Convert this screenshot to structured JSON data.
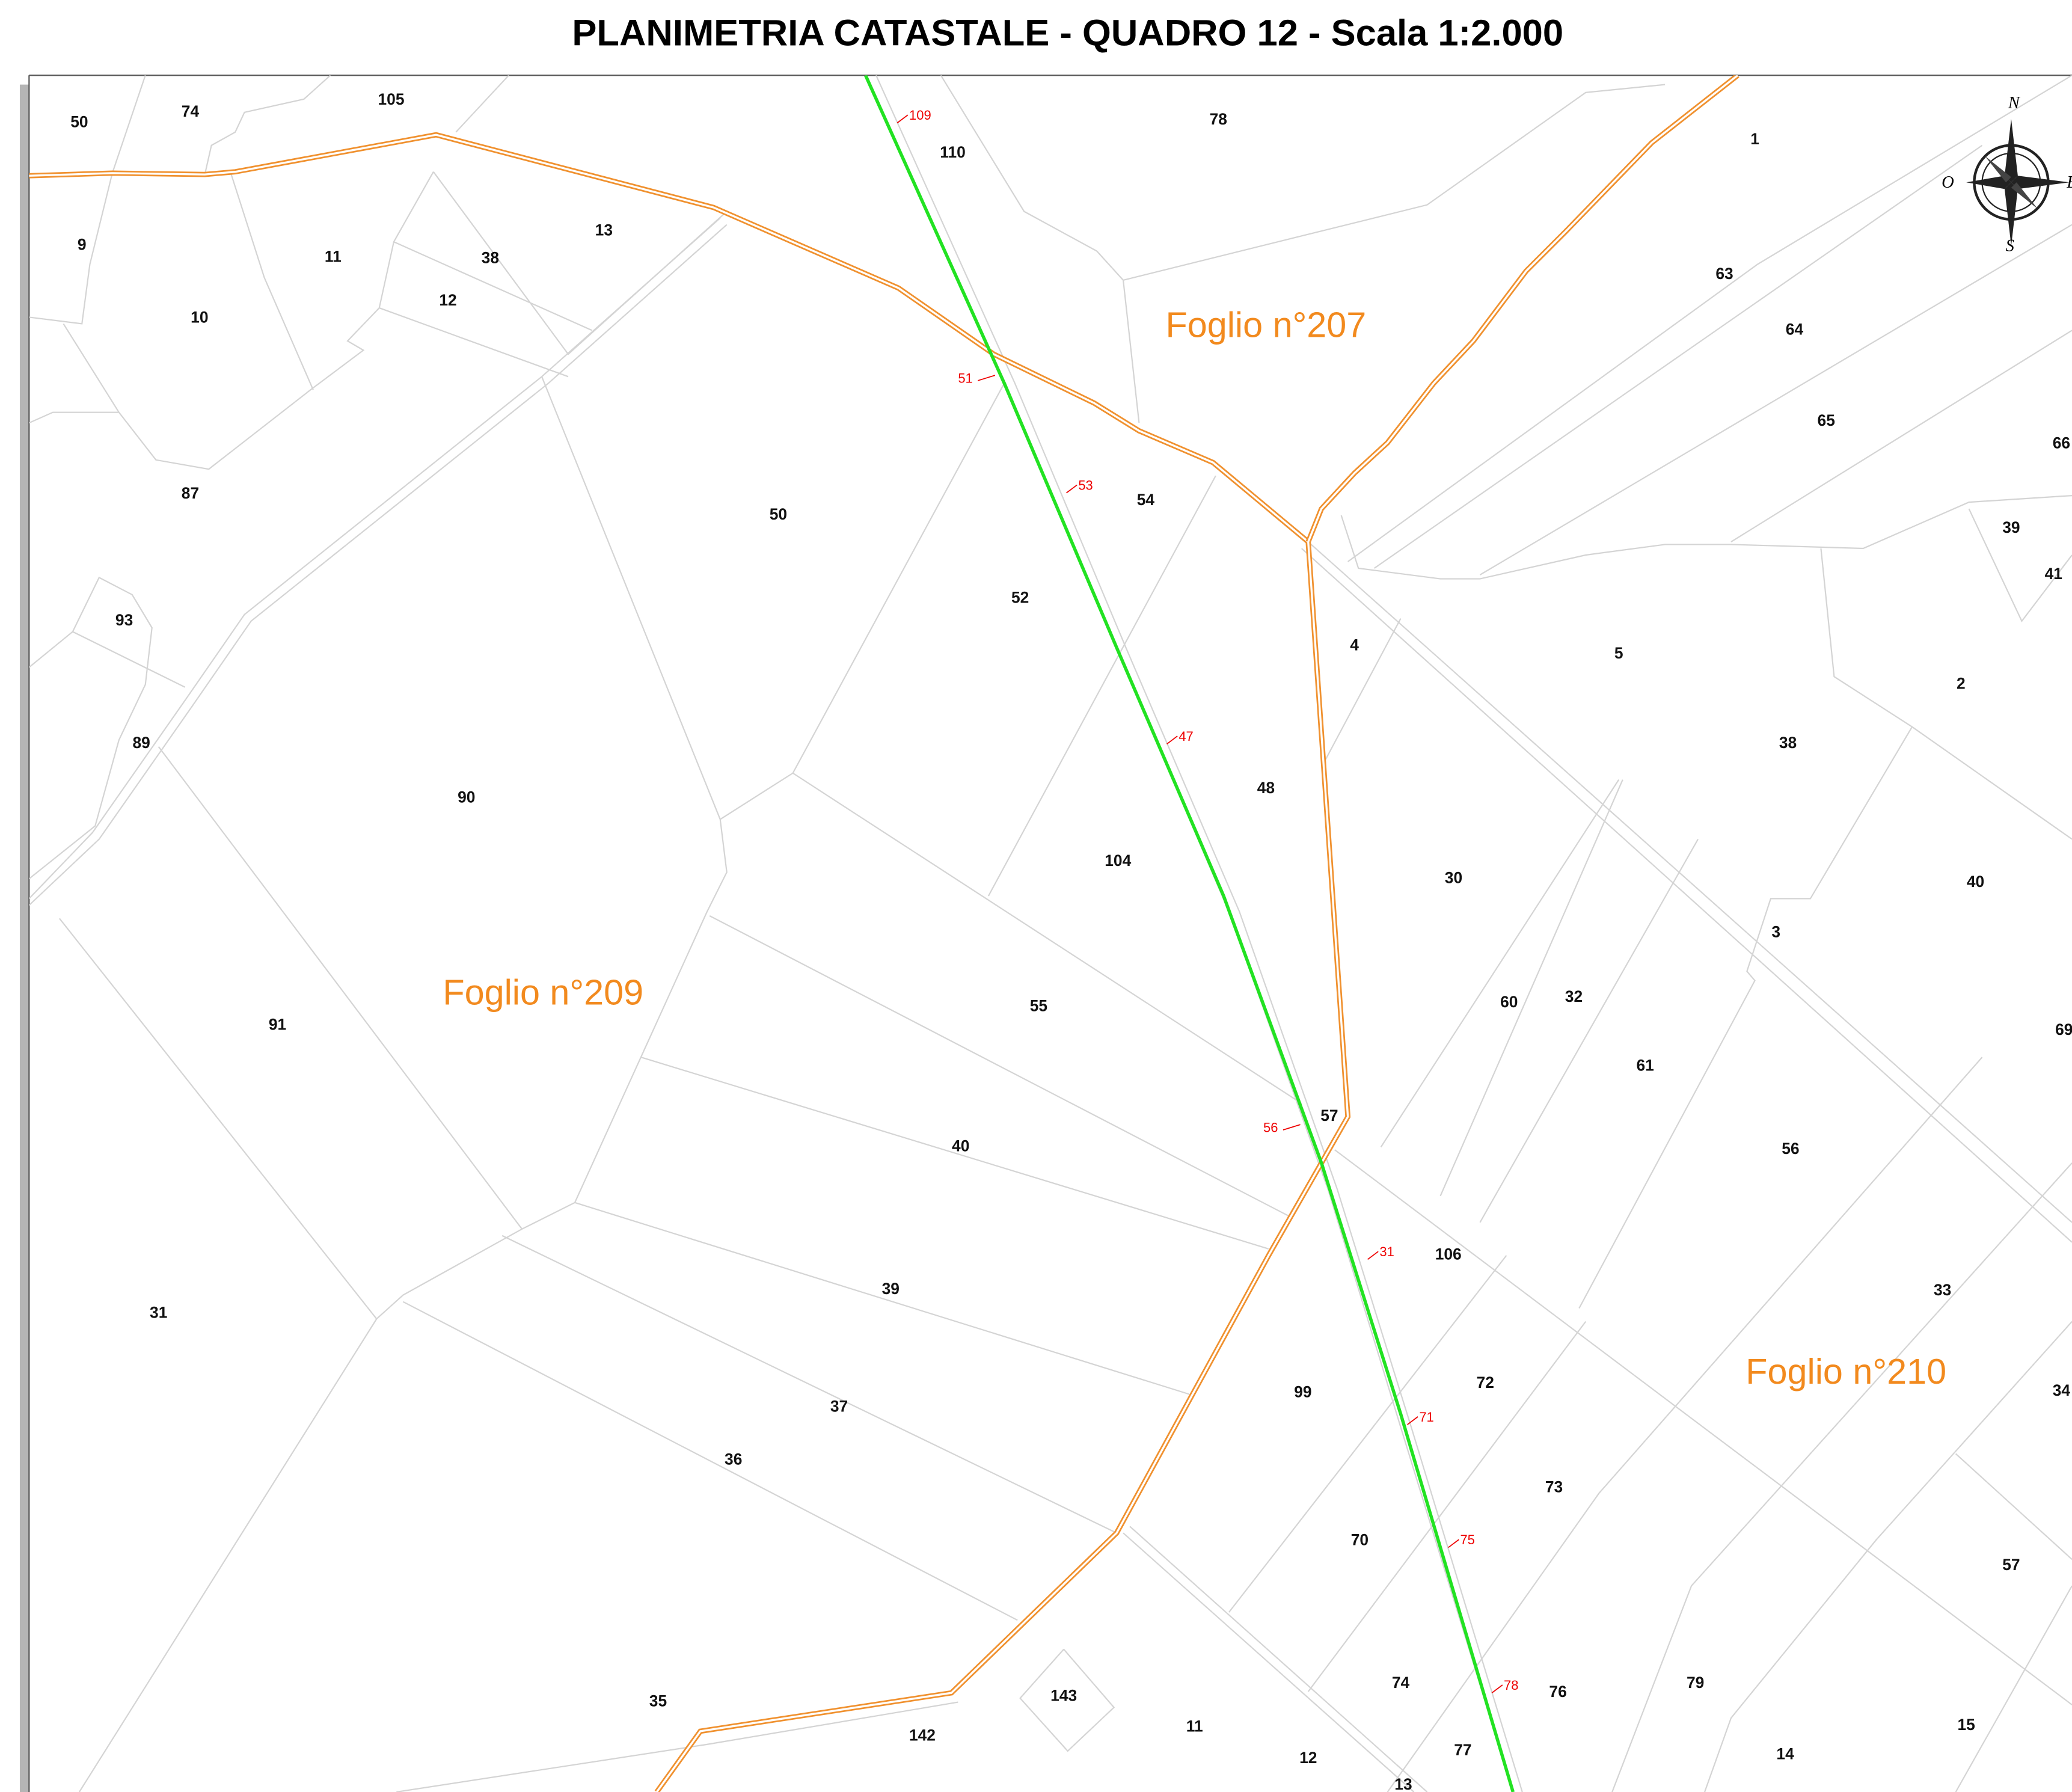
{
  "title": "PLANIMETRIA CATASTALE - QUADRO 12 - Scala 1:2.000",
  "sheets": [
    "Foglio n°207",
    "Foglio n°209",
    "Foglio n°210"
  ],
  "compass": [
    "N",
    "O",
    "S",
    "E"
  ],
  "parcels": [
    "50",
    "74",
    "105",
    "9",
    "11",
    "38",
    "13",
    "12",
    "10",
    "87",
    "93",
    "89",
    "90",
    "91",
    "31",
    "110",
    "78",
    "50",
    "54",
    "52",
    "48",
    "104",
    "55",
    "40",
    "57",
    "39",
    "37",
    "36",
    "35",
    "142",
    "143",
    "11",
    "12",
    "13",
    "74",
    "77",
    "76",
    "70",
    "99",
    "72",
    "73",
    "106",
    "4",
    "30",
    "60",
    "32",
    "61",
    "5",
    "38",
    "3",
    "56",
    "1",
    "63",
    "64",
    "65",
    "66",
    "39",
    "41",
    "2",
    "40",
    "69",
    "33",
    "34",
    "57",
    "79",
    "14",
    "15"
  ],
  "markers": [
    "109",
    "51",
    "53",
    "47",
    "56",
    "31",
    "71",
    "75",
    "78"
  ]
}
